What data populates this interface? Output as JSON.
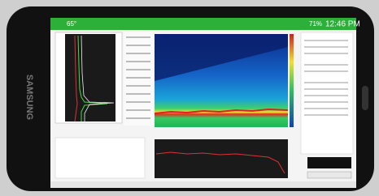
{
  "status_bar": {
    "temperature": "65°",
    "battery": "71%",
    "time": "12:46 PM"
  },
  "device": {
    "brand": "SAMSUNG"
  }
}
